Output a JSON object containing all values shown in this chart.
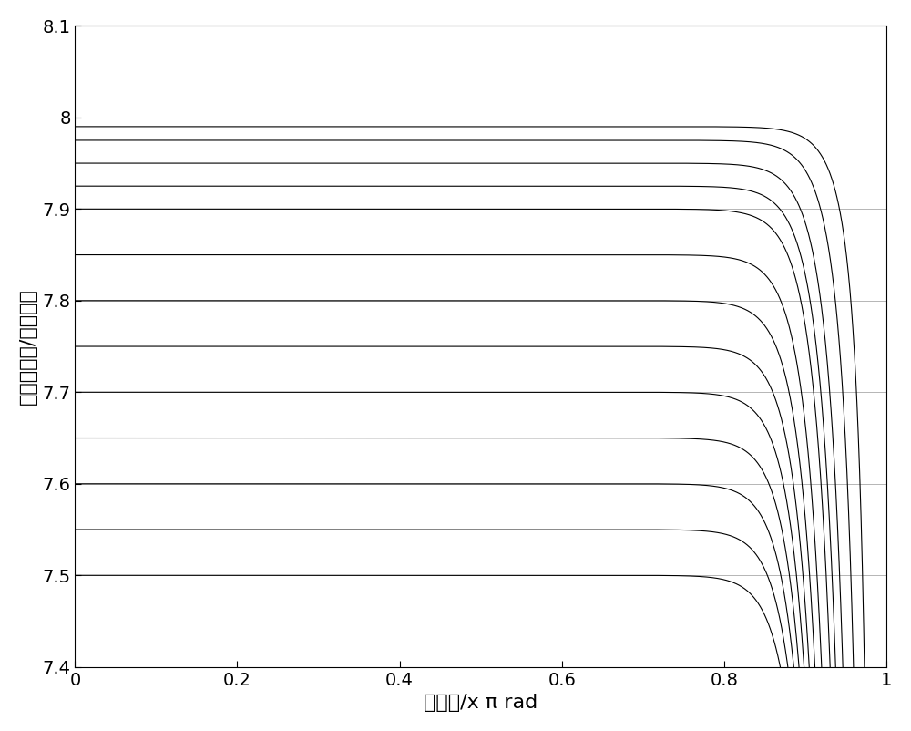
{
  "xlabel": "角频率/x π rad",
  "ylabel": "群延迟响应/采样间隔",
  "xlim": [
    0,
    1
  ],
  "ylim": [
    7.4,
    8.1
  ],
  "xticks": [
    0,
    0.2,
    0.4,
    0.6,
    0.8,
    1
  ],
  "yticks": [
    7.4,
    7.5,
    7.6,
    7.7,
    7.8,
    7.9,
    8.0,
    8.1
  ],
  "line_color": "#000000",
  "background_color": "#ffffff",
  "grid_color": "#aaaaaa",
  "n_curves": 13,
  "delay_values": [
    7.5,
    7.55,
    7.6,
    7.65,
    7.7,
    7.75,
    7.8,
    7.85,
    7.9,
    7.925,
    7.95,
    7.975,
    7.99
  ],
  "filter_order": 15,
  "xlabel_fontsize": 16,
  "ylabel_fontsize": 16,
  "tick_fontsize": 14
}
